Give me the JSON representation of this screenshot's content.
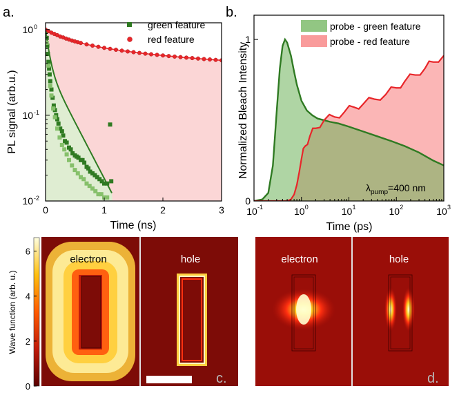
{
  "colors": {
    "green": "#2f7a22",
    "light_green": "#86c06b",
    "red": "#e8262a",
    "red_fill": "#fbd6d6",
    "green_fill": "#dcefd1",
    "dark_red": "#7d0c07",
    "axis": "#000000"
  },
  "chart_data": [
    {
      "panel": "a.",
      "type": "scatter",
      "xlabel": "Time (ns)",
      "ylabel": "PL signal (arb.u.)",
      "xlim": [
        0,
        3
      ],
      "ylim": [
        0.01,
        1.2
      ],
      "yscale": "log",
      "x_ticks": [
        0,
        1,
        2,
        3
      ],
      "x_tick_labels": [
        "0",
        "1",
        "2",
        "3"
      ],
      "y_ticks": [
        0.01,
        0.1,
        1
      ],
      "y_tick_labels": [
        "10",
        "10",
        "10"
      ],
      "y_tick_exponents": [
        "-2",
        "-1",
        "0"
      ],
      "legend_position": "top-right",
      "series": [
        {
          "name": "green feature",
          "marker": "square",
          "x": [
            0.01,
            0.02,
            0.03,
            0.04,
            0.05,
            0.06,
            0.07,
            0.08,
            0.1,
            0.12,
            0.14,
            0.16,
            0.18,
            0.2,
            0.22,
            0.25,
            0.28,
            0.3,
            0.33,
            0.36,
            0.4,
            0.43,
            0.46,
            0.5,
            0.53,
            0.56,
            0.6,
            0.63,
            0.66,
            0.7,
            0.73,
            0.76,
            0.8,
            0.84,
            0.88,
            0.92,
            0.96,
            1.0,
            1.05,
            1.1,
            1.12,
            0.02,
            0.05,
            0.08,
            0.1,
            0.13,
            0.16,
            0.2,
            0.24,
            0.28,
            0.32,
            0.36,
            0.4,
            0.45,
            0.5,
            0.55,
            0.6,
            0.65,
            0.7,
            0.75,
            0.8,
            0.85,
            0.9,
            0.95,
            1.0,
            1.05
          ],
          "y": [
            0.95,
            0.8,
            0.65,
            0.52,
            0.42,
            0.35,
            0.3,
            0.25,
            0.2,
            0.16,
            0.13,
            0.115,
            0.1,
            0.09,
            0.08,
            0.07,
            0.065,
            0.058,
            0.05,
            0.048,
            0.042,
            0.04,
            0.036,
            0.034,
            0.033,
            0.032,
            0.03,
            0.03,
            0.028,
            0.025,
            0.024,
            0.022,
            0.021,
            0.02,
            0.019,
            0.018,
            0.017,
            0.016,
            0.016,
            0.078,
            0.017,
            0.7,
            0.38,
            0.22,
            0.17,
            0.12,
            0.095,
            0.07,
            0.055,
            0.045,
            0.04,
            0.035,
            0.03,
            0.026,
            0.023,
            0.021,
            0.019,
            0.018,
            0.016,
            0.015,
            0.014,
            0.013,
            0.012,
            0.012,
            0.011,
            0.011
          ]
        },
        {
          "name": "red feature",
          "marker": "circle",
          "x": [
            0,
            0.05,
            0.1,
            0.15,
            0.2,
            0.25,
            0.3,
            0.35,
            0.4,
            0.45,
            0.5,
            0.55,
            0.6,
            0.7,
            0.8,
            0.9,
            1.0,
            1.1,
            1.2,
            1.3,
            1.4,
            1.5,
            1.6,
            1.7,
            1.8,
            1.9,
            2.0,
            2.1,
            2.2,
            2.3,
            2.4,
            2.5,
            2.6,
            2.7,
            2.8,
            2.9,
            3.0
          ],
          "y": [
            1.0,
            0.96,
            0.92,
            0.89,
            0.86,
            0.83,
            0.81,
            0.785,
            0.765,
            0.745,
            0.728,
            0.712,
            0.698,
            0.672,
            0.65,
            0.63,
            0.612,
            0.596,
            0.582,
            0.568,
            0.556,
            0.545,
            0.534,
            0.524,
            0.515,
            0.507,
            0.499,
            0.491,
            0.484,
            0.477,
            0.471,
            0.465,
            0.459,
            0.453,
            0.448,
            0.443,
            0.438
          ]
        }
      ]
    },
    {
      "panel": "b.",
      "type": "area",
      "xlabel": "Time (ps)",
      "ylabel": "Normalized Bleach Intensity",
      "xscale": "log",
      "xlim": [
        0.1,
        1000
      ],
      "ylim": [
        0,
        1.15
      ],
      "x_ticks": [
        0.1,
        1,
        10,
        100,
        1000
      ],
      "x_tick_labels": [
        "10",
        "10",
        "10",
        "10",
        "10"
      ],
      "x_tick_exponents": [
        "-1",
        "0",
        "1",
        "2",
        "3"
      ],
      "y_ticks": [
        0,
        1
      ],
      "y_tick_labels": [
        "0",
        "1"
      ],
      "legend_position": "top-right",
      "annotation": {
        "main": "λ",
        "sub": "pump",
        "rest": "=400 nm"
      },
      "series": [
        {
          "name": "probe  - green feature",
          "x": [
            0.1,
            0.15,
            0.2,
            0.25,
            0.3,
            0.35,
            0.4,
            0.45,
            0.5,
            0.6,
            0.7,
            0.8,
            1,
            1.3,
            1.7,
            2.2,
            3,
            4,
            6,
            10,
            20,
            40,
            80,
            150,
            300,
            600,
            1000
          ],
          "y": [
            0,
            0.01,
            0.05,
            0.22,
            0.55,
            0.82,
            0.96,
            1.0,
            0.98,
            0.9,
            0.8,
            0.72,
            0.62,
            0.56,
            0.53,
            0.51,
            0.5,
            0.49,
            0.48,
            0.46,
            0.43,
            0.4,
            0.37,
            0.34,
            0.3,
            0.25,
            0.22
          ]
        },
        {
          "name": "probe - red feature",
          "x": [
            0.1,
            0.3,
            0.5,
            0.6,
            0.7,
            0.8,
            0.9,
            1,
            1.2,
            1.5,
            2,
            3,
            5,
            8,
            13,
            20,
            35,
            60,
            100,
            150,
            250,
            400,
            600,
            1000
          ],
          "y": [
            0,
            0,
            0,
            0.01,
            0.04,
            0.1,
            0.18,
            0.26,
            0.34,
            0.4,
            0.45,
            0.5,
            0.52,
            0.55,
            0.58,
            0.6,
            0.63,
            0.66,
            0.7,
            0.74,
            0.78,
            0.82,
            0.86,
            0.9
          ]
        }
      ]
    },
    {
      "panel": "c.",
      "type": "heatmap",
      "colorbar_label": "Wave function (arb. u.)",
      "colorbar_ticks": [
        0,
        2,
        4,
        6
      ],
      "colorbar_tick_labels": [
        "0",
        "2",
        "4",
        "6"
      ],
      "labels": [
        "electron",
        "hole"
      ]
    },
    {
      "panel": "d.",
      "type": "heatmap",
      "labels": [
        "electron",
        "hole"
      ]
    }
  ]
}
